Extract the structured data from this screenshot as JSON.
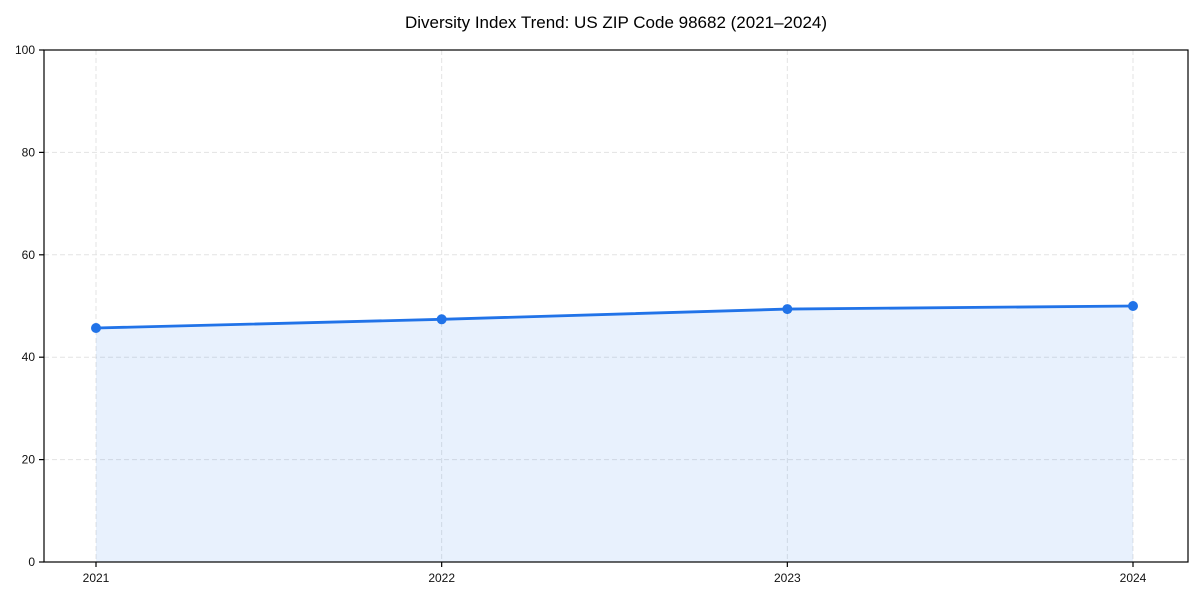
{
  "chart_data": {
    "type": "area",
    "title": "Diversity Index Trend: US ZIP Code 98682 (2021–2024)",
    "xlabel": "",
    "ylabel": "",
    "x": [
      2021,
      2022,
      2023,
      2024
    ],
    "xticklabels": [
      "2021",
      "2022",
      "2023",
      "2024"
    ],
    "series": [
      {
        "name": "Diversity Index",
        "values": [
          45.7,
          47.4,
          49.4,
          50.0
        ]
      }
    ],
    "ylim": [
      0,
      100
    ],
    "yticks": [
      0,
      20,
      40,
      60,
      80,
      100
    ],
    "grid": "dashed both axes",
    "legend_position": "none",
    "marker": "circle",
    "colors": {
      "line": "#2173e8",
      "marker": "#2173e8",
      "fill": "#2173e8",
      "fill_opacity": 0.1,
      "grid": "#e3e3e3",
      "spine": "#000000",
      "tick_label": "#111111"
    }
  }
}
